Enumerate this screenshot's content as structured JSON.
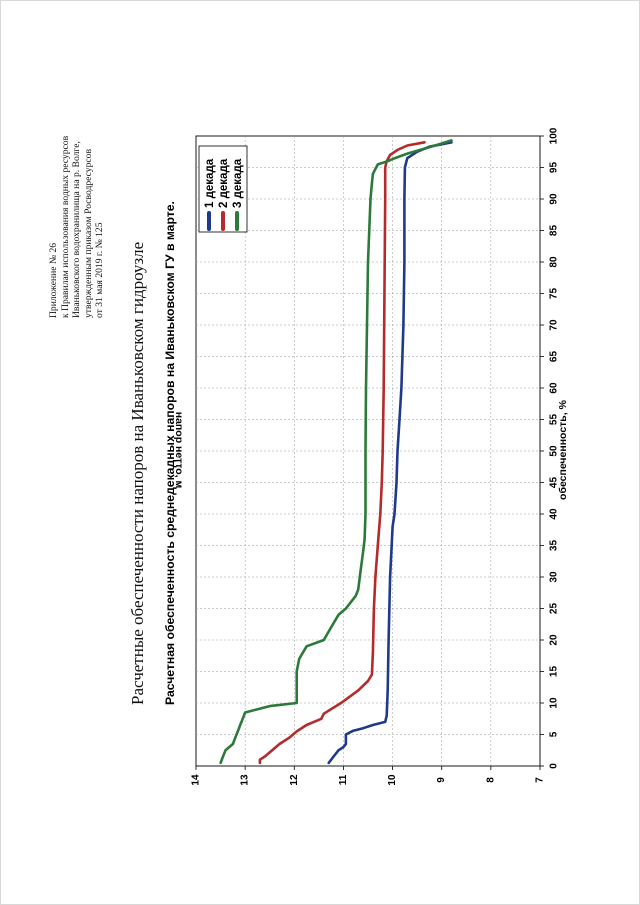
{
  "appendix": {
    "lines": [
      "Приложение № 26",
      "к Правилам использования водных ресурсов",
      "Иваньковского водохранилища на р. Волге,",
      "утвержденным приказом Росводресурсов",
      "от 31 мая 2019 г. № 125"
    ]
  },
  "document_title": "Расчетные обеспеченности напоров на Иваньковском гидроузле",
  "chart_data": {
    "type": "line",
    "title": "Расчетная обеспеченность среднедекадных напоров на Иваньковском ГУ в марте.",
    "xlabel": "обеспеченность, %",
    "ylabel": "напор нетто, м",
    "xlim": [
      0,
      100
    ],
    "ylim": [
      7,
      14
    ],
    "x_ticks": [
      0,
      5,
      10,
      15,
      20,
      25,
      30,
      35,
      40,
      45,
      50,
      55,
      60,
      65,
      70,
      75,
      80,
      85,
      90,
      95,
      100
    ],
    "y_ticks": [
      7,
      8,
      9,
      10,
      11,
      12,
      13,
      14
    ],
    "grid": true,
    "legend_position": "top-right",
    "series": [
      {
        "name": "1 декада",
        "color": "#1f3a8c",
        "points": [
          [
            0.5,
            11.3
          ],
          [
            1.5,
            11.2
          ],
          [
            2.5,
            11.1
          ],
          [
            3.0,
            11.0
          ],
          [
            3.5,
            10.95
          ],
          [
            4.5,
            10.95
          ],
          [
            5.0,
            10.95
          ],
          [
            5.6,
            10.8
          ],
          [
            6.0,
            10.6
          ],
          [
            6.5,
            10.4
          ],
          [
            7.0,
            10.15
          ],
          [
            8.0,
            10.12
          ],
          [
            12.0,
            10.1
          ],
          [
            20.0,
            10.08
          ],
          [
            30.0,
            10.05
          ],
          [
            38.0,
            10.0
          ],
          [
            40.0,
            9.96
          ],
          [
            45.0,
            9.92
          ],
          [
            50.0,
            9.9
          ],
          [
            55.0,
            9.86
          ],
          [
            60.0,
            9.82
          ],
          [
            65.0,
            9.8
          ],
          [
            70.0,
            9.78
          ],
          [
            80.0,
            9.76
          ],
          [
            90.0,
            9.76
          ],
          [
            95.0,
            9.75
          ],
          [
            96.5,
            9.7
          ],
          [
            97.5,
            9.5
          ],
          [
            98.3,
            9.25
          ],
          [
            99.0,
            8.8
          ]
        ]
      },
      {
        "name": "2 декада",
        "color": "#b52a2a",
        "points": [
          [
            0.5,
            12.7
          ],
          [
            1.0,
            12.7
          ],
          [
            1.5,
            12.6
          ],
          [
            2.5,
            12.45
          ],
          [
            3.5,
            12.3
          ],
          [
            4.5,
            12.1
          ],
          [
            5.5,
            11.95
          ],
          [
            6.5,
            11.75
          ],
          [
            7.0,
            11.6
          ],
          [
            7.5,
            11.45
          ],
          [
            8.3,
            11.4
          ],
          [
            10.0,
            11.05
          ],
          [
            12.0,
            10.7
          ],
          [
            13.5,
            10.5
          ],
          [
            14.5,
            10.42
          ],
          [
            18.0,
            10.4
          ],
          [
            25.0,
            10.38
          ],
          [
            30.0,
            10.35
          ],
          [
            35.0,
            10.3
          ],
          [
            40.0,
            10.25
          ],
          [
            45.0,
            10.22
          ],
          [
            50.0,
            10.2
          ],
          [
            60.0,
            10.18
          ],
          [
            70.0,
            10.17
          ],
          [
            80.0,
            10.16
          ],
          [
            90.0,
            10.15
          ],
          [
            95.0,
            10.15
          ],
          [
            96.0,
            10.12
          ],
          [
            97.0,
            10.05
          ],
          [
            97.8,
            9.9
          ],
          [
            98.5,
            9.7
          ],
          [
            99.0,
            9.35
          ]
        ]
      },
      {
        "name": "3 декада",
        "color": "#2c7a3a",
        "points": [
          [
            0.5,
            13.5
          ],
          [
            1.5,
            13.45
          ],
          [
            2.5,
            13.4
          ],
          [
            3.5,
            13.25
          ],
          [
            4.5,
            13.2
          ],
          [
            5.5,
            13.15
          ],
          [
            6.5,
            13.1
          ],
          [
            7.5,
            13.05
          ],
          [
            8.5,
            13.0
          ],
          [
            9.5,
            12.5
          ],
          [
            10.0,
            11.95
          ],
          [
            12.0,
            11.95
          ],
          [
            15.0,
            11.95
          ],
          [
            17.0,
            11.9
          ],
          [
            19.0,
            11.75
          ],
          [
            20.0,
            11.4
          ],
          [
            22.0,
            11.25
          ],
          [
            24.0,
            11.1
          ],
          [
            25.0,
            10.95
          ],
          [
            26.0,
            10.85
          ],
          [
            27.0,
            10.75
          ],
          [
            28.0,
            10.7
          ],
          [
            31.0,
            10.65
          ],
          [
            34.0,
            10.6
          ],
          [
            36.0,
            10.57
          ],
          [
            40.0,
            10.55
          ],
          [
            50.0,
            10.55
          ],
          [
            60.0,
            10.54
          ],
          [
            70.0,
            10.52
          ],
          [
            80.0,
            10.5
          ],
          [
            90.0,
            10.45
          ],
          [
            92.5,
            10.42
          ],
          [
            94.0,
            10.4
          ],
          [
            95.5,
            10.3
          ],
          [
            96.0,
            10.1
          ],
          [
            96.5,
            9.95
          ],
          [
            97.2,
            9.7
          ],
          [
            98.0,
            9.35
          ],
          [
            98.7,
            9.05
          ],
          [
            99.3,
            8.8
          ]
        ]
      }
    ]
  }
}
